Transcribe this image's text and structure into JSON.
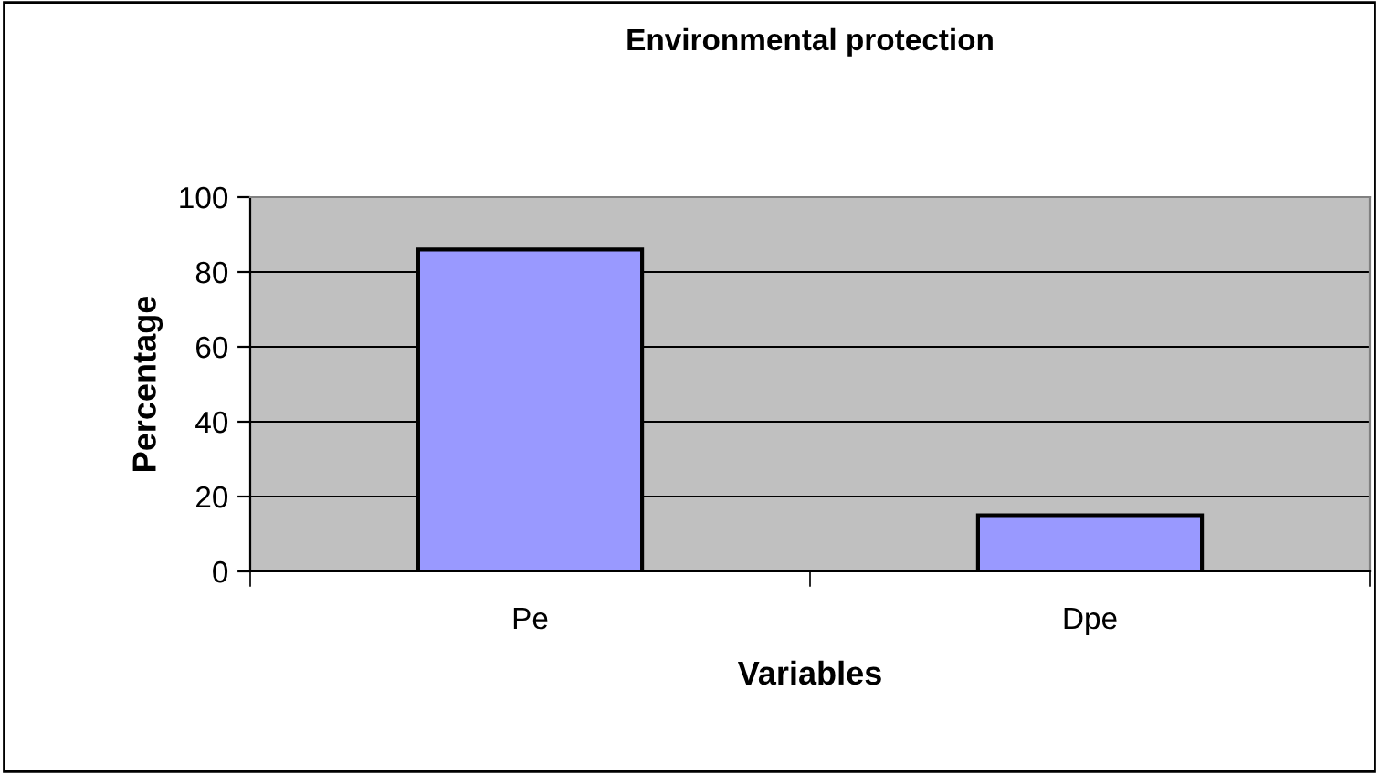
{
  "chart_data": {
    "type": "bar",
    "title": "Environmental protection",
    "xlabel": "Variables",
    "ylabel": "Percentage",
    "categories": [
      "Pe",
      "Dpe"
    ],
    "values": [
      86,
      15
    ],
    "color": "#9999ff",
    "ylim": [
      0,
      100
    ],
    "yticks": [
      0,
      20,
      40,
      60,
      80,
      100
    ],
    "grid": "y"
  }
}
